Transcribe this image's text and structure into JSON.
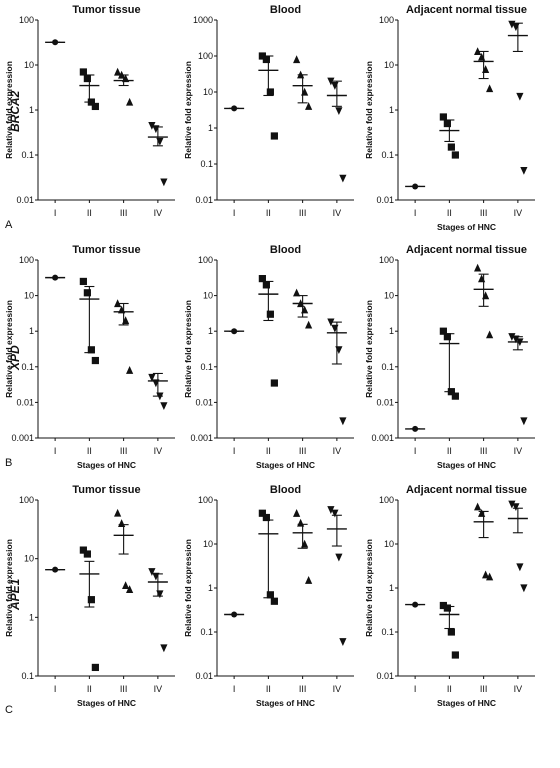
{
  "rows": [
    {
      "gene": "BRCA2",
      "letter": "A"
    },
    {
      "gene": "XPD",
      "letter": "B"
    },
    {
      "gene": "APE1",
      "letter": "C"
    }
  ],
  "ylabel": "Relative fold expression",
  "xlabel": "Stages of HNC",
  "categories": [
    "I",
    "II",
    "III",
    "IV"
  ],
  "chart_data": [
    {
      "type": "scatter",
      "gene": "BRCA2",
      "title": "Tumor tissue",
      "yscale": "log",
      "ylim": [
        0.01,
        100
      ],
      "ticks": [
        "0.01",
        "0.1",
        "1",
        "10",
        "100"
      ],
      "xlabel": "",
      "categories": [
        "I",
        "II",
        "III",
        "IV"
      ],
      "groups": [
        {
          "stage": "I",
          "marker": "circle",
          "points": [
            32
          ],
          "mean": 32,
          "low": 32,
          "high": 32
        },
        {
          "stage": "II",
          "marker": "square",
          "points": [
            7,
            5,
            1.5,
            1.2
          ],
          "mean": 3.5,
          "low": 1.5,
          "high": 6
        },
        {
          "stage": "III",
          "marker": "triangle",
          "points": [
            7,
            6,
            5,
            1.5
          ],
          "mean": 4.5,
          "low": 3.5,
          "high": 6
        },
        {
          "stage": "IV",
          "marker": "triangle-down",
          "points": [
            0.45,
            0.38,
            0.2,
            0.025
          ],
          "mean": 0.25,
          "low": 0.16,
          "high": 0.42
        }
      ]
    },
    {
      "type": "scatter",
      "gene": "BRCA2",
      "title": "Blood",
      "yscale": "log",
      "ylim": [
        0.01,
        1000
      ],
      "ticks": [
        "0.01",
        "0.1",
        "1",
        "10",
        "100",
        "1000"
      ],
      "xlabel": "",
      "categories": [
        "I",
        "II",
        "III",
        "IV"
      ],
      "groups": [
        {
          "stage": "I",
          "marker": "circle",
          "points": [
            3.5
          ],
          "mean": 3.5,
          "low": 3.5,
          "high": 3.5
        },
        {
          "stage": "II",
          "marker": "square",
          "points": [
            100,
            80,
            10,
            0.6
          ],
          "mean": 40,
          "low": 8,
          "high": 100
        },
        {
          "stage": "III",
          "marker": "triangle",
          "points": [
            80,
            30,
            10,
            4
          ],
          "mean": 15,
          "low": 5,
          "high": 30
        },
        {
          "stage": "IV",
          "marker": "triangle-down",
          "points": [
            20,
            15,
            3,
            0.04
          ],
          "mean": 8,
          "low": 4,
          "high": 20
        }
      ]
    },
    {
      "type": "scatter",
      "gene": "BRCA2",
      "title": "Adjacent normal tissue",
      "yscale": "log",
      "ylim": [
        0.01,
        100
      ],
      "ticks": [
        "0.01",
        "0.1",
        "1",
        "10",
        "100"
      ],
      "xlabel": "Stages of HNC",
      "categories": [
        "I",
        "II",
        "III",
        "IV"
      ],
      "groups": [
        {
          "stage": "I",
          "marker": "circle",
          "points": [
            0.02
          ],
          "mean": 0.02,
          "low": 0.02,
          "high": 0.02
        },
        {
          "stage": "II",
          "marker": "square",
          "points": [
            0.7,
            0.5,
            0.15,
            0.1
          ],
          "mean": 0.35,
          "low": 0.2,
          "high": 0.6
        },
        {
          "stage": "III",
          "marker": "triangle",
          "points": [
            20,
            15,
            8,
            3
          ],
          "mean": 12,
          "low": 5,
          "high": 20
        },
        {
          "stage": "IV",
          "marker": "triangle-down",
          "points": [
            80,
            70,
            2,
            0.045
          ],
          "mean": 45,
          "low": 20,
          "high": 85
        }
      ]
    },
    {
      "type": "scatter",
      "gene": "XPD",
      "title": "Tumor tissue",
      "yscale": "log",
      "ylim": [
        0.001,
        100
      ],
      "ticks": [
        "0.001",
        "0.01",
        "0.1",
        "1",
        "10",
        "100"
      ],
      "xlabel": "Stages of HNC",
      "categories": [
        "I",
        "II",
        "III",
        "IV"
      ],
      "groups": [
        {
          "stage": "I",
          "marker": "circle",
          "points": [
            32
          ],
          "mean": 32,
          "low": 32,
          "high": 32
        },
        {
          "stage": "II",
          "marker": "square",
          "points": [
            25,
            12,
            0.3,
            0.15
          ],
          "mean": 8,
          "low": 0.25,
          "high": 18
        },
        {
          "stage": "III",
          "marker": "triangle",
          "points": [
            6,
            4,
            2,
            0.08
          ],
          "mean": 3.5,
          "low": 1.5,
          "high": 6
        },
        {
          "stage": "IV",
          "marker": "triangle-down",
          "points": [
            0.05,
            0.035,
            0.015,
            0.008
          ],
          "mean": 0.04,
          "low": 0.015,
          "high": 0.065
        }
      ]
    },
    {
      "type": "scatter",
      "gene": "XPD",
      "title": "Blood",
      "yscale": "log",
      "ylim": [
        0.001,
        100
      ],
      "ticks": [
        "0.001",
        "0.01",
        "0.1",
        "1",
        "10",
        "100"
      ],
      "xlabel": "Stages of HNC",
      "categories": [
        "I",
        "II",
        "III",
        "IV"
      ],
      "groups": [
        {
          "stage": "I",
          "marker": "circle",
          "points": [
            1
          ],
          "mean": 1,
          "low": 1,
          "high": 1
        },
        {
          "stage": "II",
          "marker": "square",
          "points": [
            30,
            20,
            3,
            0.035
          ],
          "mean": 11,
          "low": 2,
          "high": 25
        },
        {
          "stage": "III",
          "marker": "triangle",
          "points": [
            12,
            6,
            4,
            1.5
          ],
          "mean": 6,
          "low": 2.5,
          "high": 10
        },
        {
          "stage": "IV",
          "marker": "triangle-down",
          "points": [
            1.8,
            1.2,
            0.3,
            0.003
          ],
          "mean": 0.9,
          "low": 0.12,
          "high": 1.8
        }
      ]
    },
    {
      "type": "scatter",
      "gene": "XPD",
      "title": "Adjacent normal tissue",
      "yscale": "log",
      "ylim": [
        0.001,
        100
      ],
      "ticks": [
        "0.001",
        "0.01",
        "0.1",
        "1",
        "10",
        "100"
      ],
      "xlabel": "Stages of HNC",
      "categories": [
        "I",
        "II",
        "III",
        "IV"
      ],
      "groups": [
        {
          "stage": "I",
          "marker": "circle",
          "points": [
            0.0018
          ],
          "mean": 0.0018,
          "low": 0.0018,
          "high": 0.0018
        },
        {
          "stage": "II",
          "marker": "square",
          "points": [
            1,
            0.7,
            0.02,
            0.015
          ],
          "mean": 0.45,
          "low": 0.02,
          "high": 0.85
        },
        {
          "stage": "III",
          "marker": "triangle",
          "points": [
            60,
            30,
            10,
            0.8
          ],
          "mean": 15,
          "low": 5,
          "high": 40
        },
        {
          "stage": "IV",
          "marker": "triangle-down",
          "points": [
            0.7,
            0.6,
            0.5,
            0.003
          ],
          "mean": 0.5,
          "low": 0.3,
          "high": 0.7
        }
      ]
    },
    {
      "type": "scatter",
      "gene": "APE1",
      "title": "Tumor tissue",
      "yscale": "log",
      "ylim": [
        0.1,
        100
      ],
      "ticks": [
        "0.1",
        "1",
        "10",
        "100"
      ],
      "xlabel": "Stages of HNC",
      "categories": [
        "I",
        "II",
        "III",
        "IV"
      ],
      "groups": [
        {
          "stage": "I",
          "marker": "circle",
          "points": [
            6.5
          ],
          "mean": 6.5,
          "low": 6.5,
          "high": 6.5
        },
        {
          "stage": "II",
          "marker": "square",
          "points": [
            14,
            12,
            2,
            0.14
          ],
          "mean": 5.5,
          "low": 1.5,
          "high": 9
        },
        {
          "stage": "III",
          "marker": "triangle",
          "points": [
            60,
            40,
            3.5,
            3
          ],
          "mean": 25,
          "low": 12,
          "high": 38
        },
        {
          "stage": "IV",
          "marker": "triangle-down",
          "points": [
            6,
            5,
            2.5,
            0.3
          ],
          "mean": 4,
          "low": 2.3,
          "high": 5.5
        }
      ]
    },
    {
      "type": "scatter",
      "gene": "APE1",
      "title": "Blood",
      "yscale": "log",
      "ylim": [
        0.01,
        100
      ],
      "ticks": [
        "0.01",
        "0.1",
        "1",
        "10",
        "100"
      ],
      "xlabel": "Stages of HNC",
      "categories": [
        "I",
        "II",
        "III",
        "IV"
      ],
      "groups": [
        {
          "stage": "I",
          "marker": "circle",
          "points": [
            0.25
          ],
          "mean": 0.25,
          "low": 0.25,
          "high": 0.25
        },
        {
          "stage": "II",
          "marker": "square",
          "points": [
            50,
            40,
            0.7,
            0.5
          ],
          "mean": 17,
          "low": 0.6,
          "high": 35
        },
        {
          "stage": "III",
          "marker": "triangle",
          "points": [
            50,
            30,
            10,
            1.5
          ],
          "mean": 18,
          "low": 8,
          "high": 28
        },
        {
          "stage": "IV",
          "marker": "triangle-down",
          "points": [
            60,
            50,
            5,
            0.06
          ],
          "mean": 22,
          "low": 9,
          "high": 45
        }
      ]
    },
    {
      "type": "scatter",
      "gene": "APE1",
      "title": "Adjacent normal tissue",
      "yscale": "log",
      "ylim": [
        0.01,
        100
      ],
      "ticks": [
        "0.01",
        "0.1",
        "1",
        "10",
        "100"
      ],
      "xlabel": "Stages of HNC",
      "categories": [
        "I",
        "II",
        "III",
        "IV"
      ],
      "groups": [
        {
          "stage": "I",
          "marker": "circle",
          "points": [
            0.42
          ],
          "mean": 0.42,
          "low": 0.42,
          "high": 0.42
        },
        {
          "stage": "II",
          "marker": "square",
          "points": [
            0.4,
            0.35,
            0.1,
            0.03
          ],
          "mean": 0.25,
          "low": 0.12,
          "high": 0.38
        },
        {
          "stage": "III",
          "marker": "triangle",
          "points": [
            70,
            50,
            2,
            1.8
          ],
          "mean": 32,
          "low": 14,
          "high": 55
        },
        {
          "stage": "IV",
          "marker": "triangle-down",
          "points": [
            80,
            70,
            3,
            1
          ],
          "mean": 38,
          "low": 18,
          "high": 65
        }
      ]
    }
  ]
}
